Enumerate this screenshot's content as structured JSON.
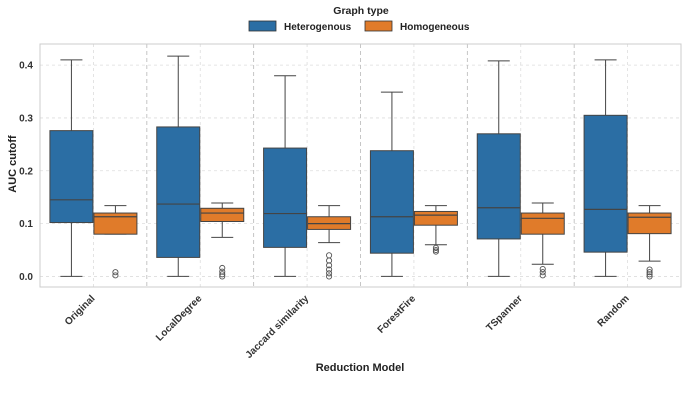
{
  "chart_data": {
    "type": "box",
    "xlabel": "Reduction Model",
    "ylabel": "AUC cutoff",
    "ylim": [
      -0.02,
      0.44
    ],
    "yticks": [
      0.0,
      0.1,
      0.2,
      0.3,
      0.4
    ],
    "grid": true,
    "legend": {
      "title": "Graph type",
      "placement": "top-center"
    },
    "categories": [
      "Original",
      "LocalDegree",
      "Jaccard similarity",
      "ForestFire",
      "TSpanner",
      "Random"
    ],
    "series": [
      {
        "name": "Heterogenous",
        "color": "#2b6ea4",
        "boxes": [
          {
            "min": 0.0,
            "q1": 0.102,
            "median": 0.145,
            "q3": 0.276,
            "max": 0.41,
            "outliers": []
          },
          {
            "min": 0.0,
            "q1": 0.036,
            "median": 0.137,
            "q3": 0.283,
            "max": 0.417,
            "outliers": []
          },
          {
            "min": 0.0,
            "q1": 0.055,
            "median": 0.119,
            "q3": 0.243,
            "max": 0.38,
            "outliers": []
          },
          {
            "min": 0.0,
            "q1": 0.044,
            "median": 0.113,
            "q3": 0.238,
            "max": 0.349,
            "outliers": []
          },
          {
            "min": 0.0,
            "q1": 0.071,
            "median": 0.13,
            "q3": 0.27,
            "max": 0.408,
            "outliers": []
          },
          {
            "min": 0.0,
            "q1": 0.046,
            "median": 0.127,
            "q3": 0.305,
            "max": 0.41,
            "outliers": []
          }
        ]
      },
      {
        "name": "Homogeneous",
        "color": "#e07b2a",
        "boxes": [
          {
            "min": 0.08,
            "q1": 0.08,
            "median": 0.113,
            "q3": 0.12,
            "max": 0.134,
            "outliers": [
              0.002,
              0.008
            ]
          },
          {
            "min": 0.074,
            "q1": 0.104,
            "median": 0.12,
            "q3": 0.129,
            "max": 0.139,
            "outliers": [
              0.0,
              0.004,
              0.009,
              0.016
            ]
          },
          {
            "min": 0.064,
            "q1": 0.089,
            "median": 0.1,
            "q3": 0.113,
            "max": 0.134,
            "outliers": [
              0.0,
              0.006,
              0.013,
              0.021,
              0.03,
              0.04
            ]
          },
          {
            "min": 0.06,
            "q1": 0.097,
            "median": 0.116,
            "q3": 0.123,
            "max": 0.134,
            "outliers": [
              0.047,
              0.05,
              0.054
            ]
          },
          {
            "min": 0.023,
            "q1": 0.08,
            "median": 0.11,
            "q3": 0.12,
            "max": 0.139,
            "outliers": [
              0.002,
              0.008,
              0.014
            ]
          },
          {
            "min": 0.029,
            "q1": 0.081,
            "median": 0.112,
            "q3": 0.12,
            "max": 0.134,
            "outliers": [
              0.0,
              0.004,
              0.008,
              0.013
            ]
          }
        ]
      }
    ]
  }
}
